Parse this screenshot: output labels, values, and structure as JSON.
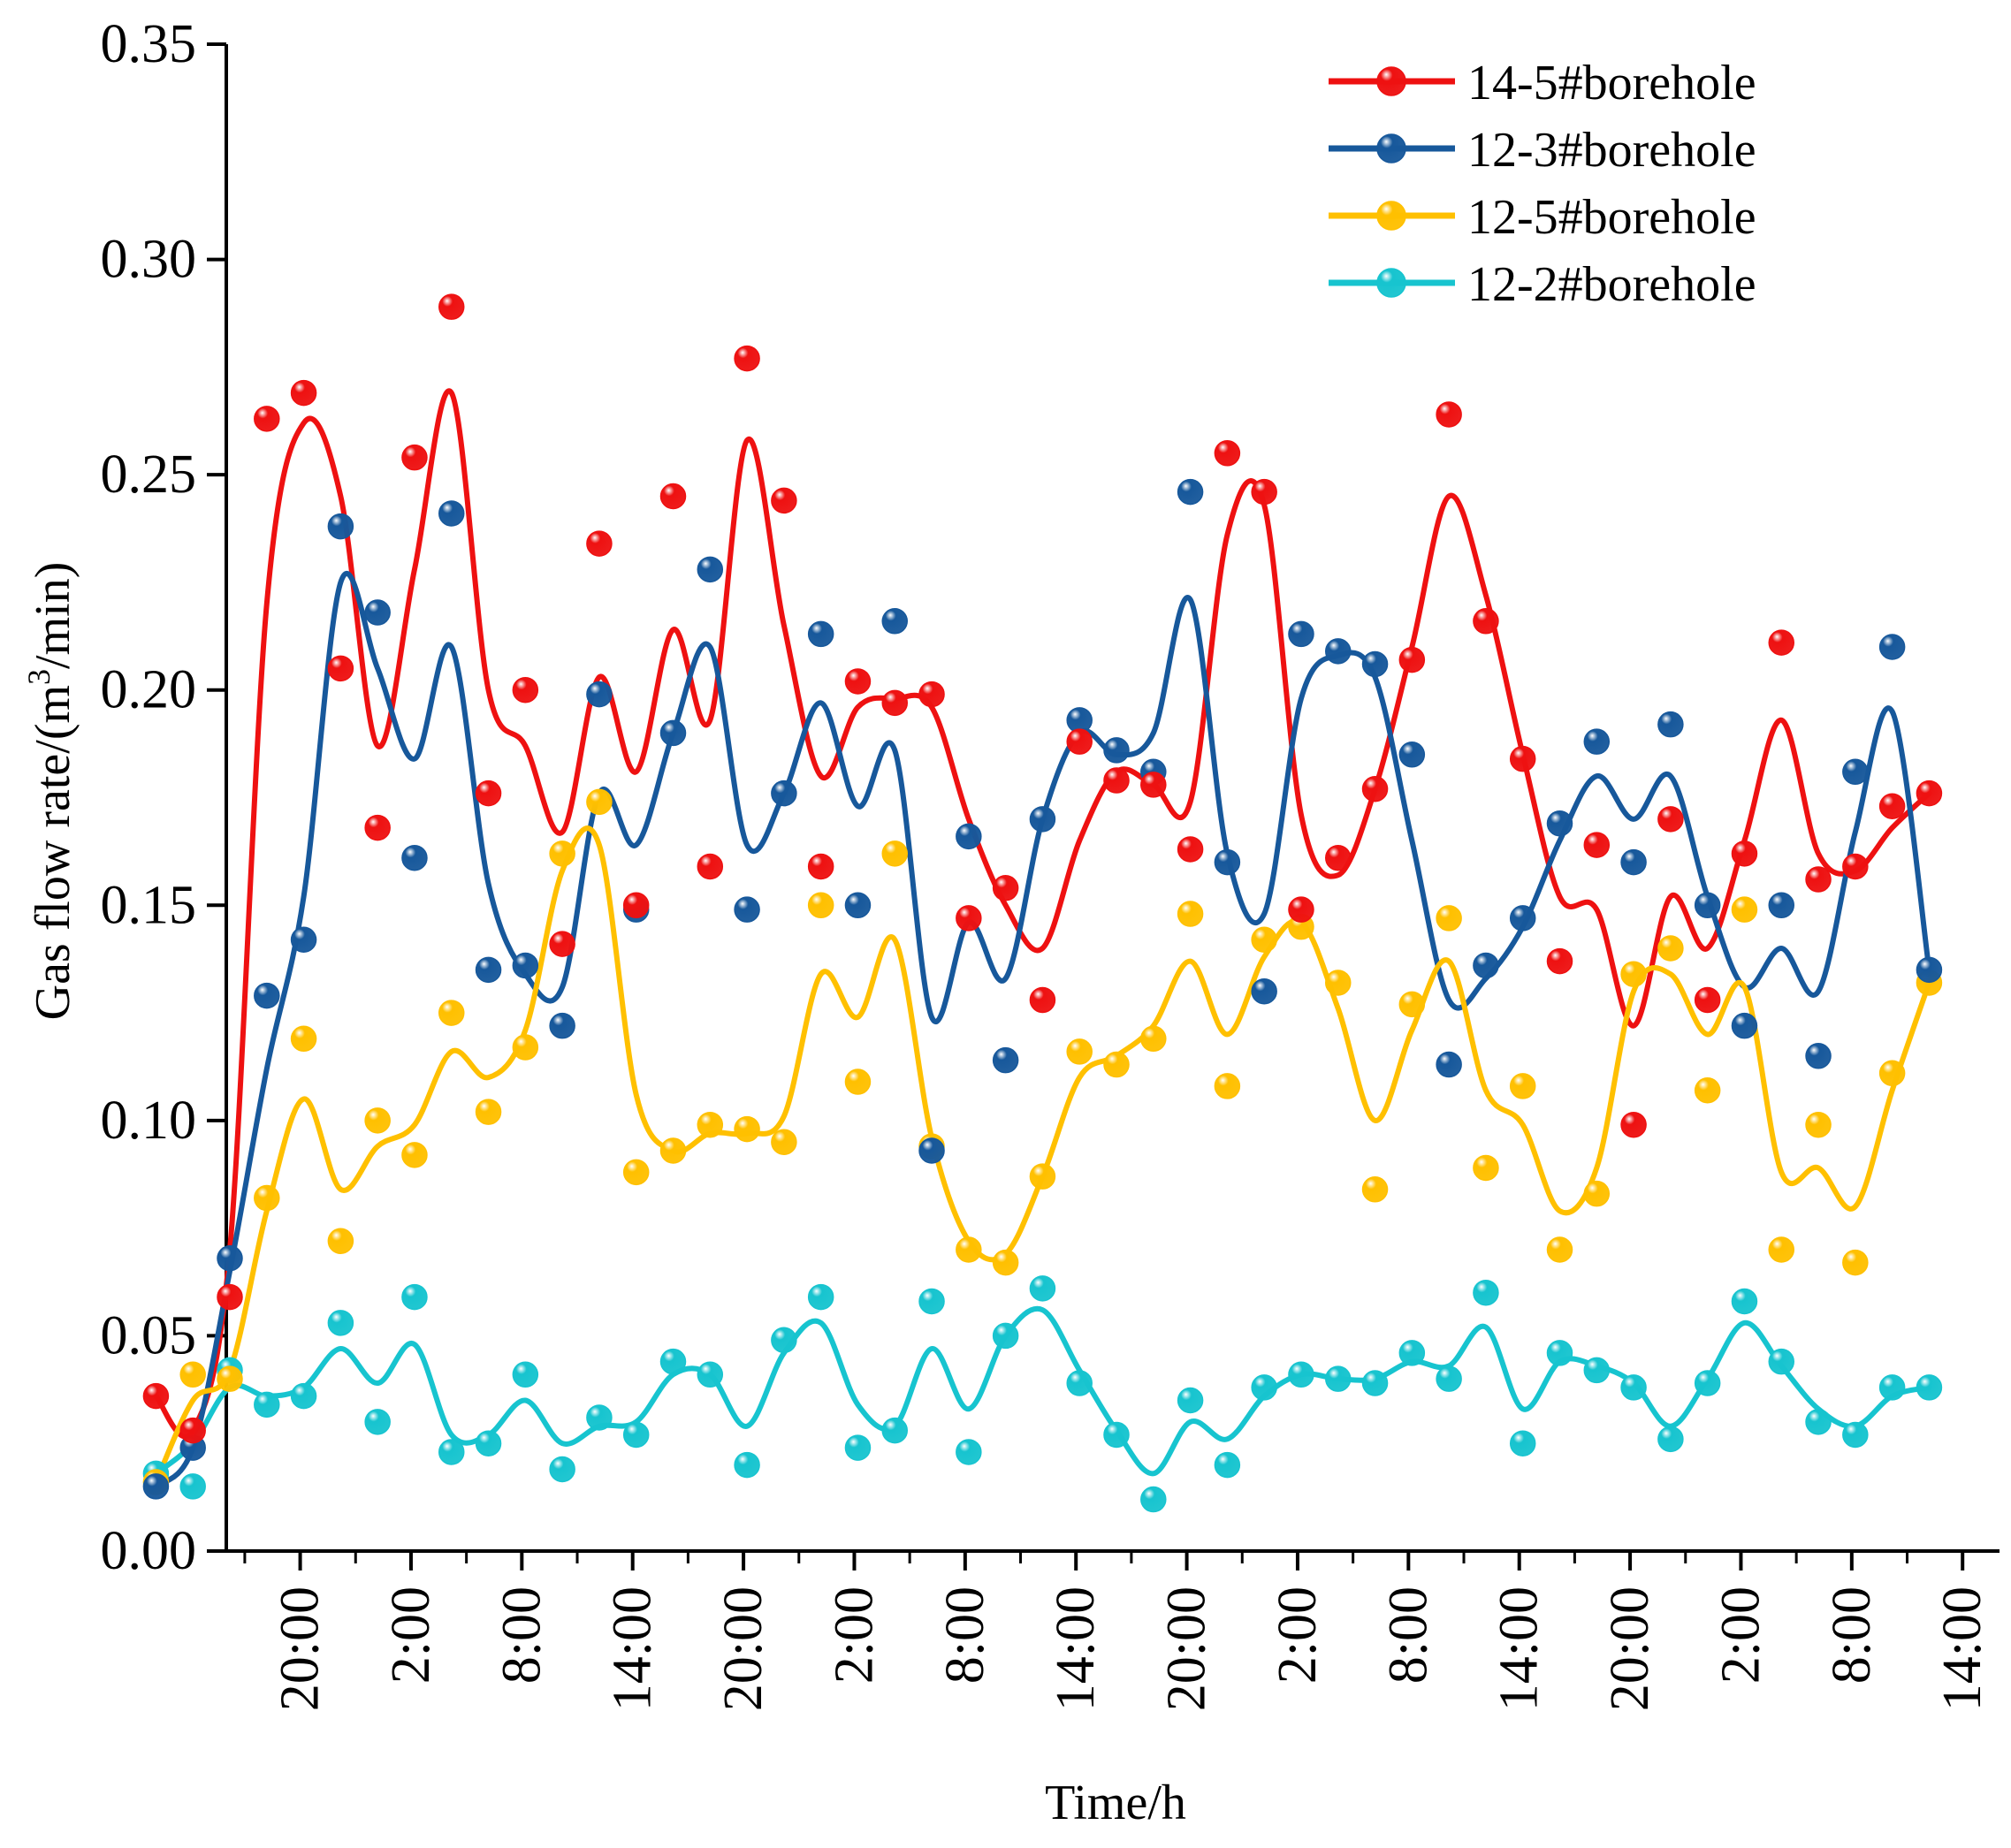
{
  "chart_data": {
    "type": "scatter",
    "title": "",
    "xlabel": "Time/h",
    "ylabel": {
      "prefix": "Gas flow rate/(m",
      "superscript": "3",
      "suffix": "/min)"
    },
    "ylim": [
      0,
      0.35
    ],
    "yticks": [
      "0.00",
      "0.05",
      "0.10",
      "0.15",
      "0.20",
      "0.25",
      "0.30",
      "0.35"
    ],
    "xlim": [
      0,
      48
    ],
    "xticks": [
      {
        "x": 2,
        "label": "20:00"
      },
      {
        "x": 5,
        "label": "2:00"
      },
      {
        "x": 8,
        "label": "8:00"
      },
      {
        "x": 11,
        "label": "14:00"
      },
      {
        "x": 14,
        "label": "20:00"
      },
      {
        "x": 17,
        "label": "2:00"
      },
      {
        "x": 20,
        "label": "8:00"
      },
      {
        "x": 23,
        "label": "14:00"
      },
      {
        "x": 26,
        "label": "20:00"
      },
      {
        "x": 29,
        "label": "2:00"
      },
      {
        "x": 32,
        "label": "8:00"
      },
      {
        "x": 35,
        "label": "14:00"
      },
      {
        "x": 38,
        "label": "20:00"
      },
      {
        "x": 41,
        "label": "2:00"
      },
      {
        "x": 44,
        "label": "8:00"
      },
      {
        "x": 47,
        "label": "14:00"
      }
    ],
    "legend_position": "top-right",
    "marker": "sphere",
    "series": [
      {
        "name": "14-5#borehole",
        "color": "#ee1111",
        "points": [
          0.036,
          0.028,
          0.059,
          0.263,
          0.269,
          0.205,
          0.168,
          0.254,
          0.289,
          0.176,
          0.2,
          0.141,
          0.234,
          0.15,
          0.245,
          0.159,
          0.277,
          0.244,
          0.159,
          0.202,
          0.197,
          0.199,
          0.147,
          0.154,
          0.128,
          0.188,
          0.179,
          0.178,
          0.163,
          0.255,
          0.246,
          0.149,
          0.161,
          0.177,
          0.207,
          0.264,
          0.216,
          0.184,
          0.137,
          0.164,
          0.099,
          0.17,
          0.128,
          0.162,
          0.211,
          0.156,
          0.159,
          0.173,
          0.176
        ],
        "curve": [
          0.036,
          0.028,
          0.07,
          0.22,
          0.262,
          0.245,
          0.187,
          0.228,
          0.269,
          0.2,
          0.187,
          0.167,
          0.203,
          0.181,
          0.214,
          0.193,
          0.258,
          0.215,
          0.18,
          0.196,
          0.198,
          0.196,
          0.17,
          0.15,
          0.14,
          0.165,
          0.181,
          0.178,
          0.174,
          0.236,
          0.243,
          0.171,
          0.157,
          0.177,
          0.21,
          0.245,
          0.222,
          0.185,
          0.152,
          0.149,
          0.122,
          0.152,
          0.14,
          0.165,
          0.193,
          0.162,
          0.158,
          0.168,
          0.176
        ]
      },
      {
        "name": "12-3#borehole",
        "color": "#17589b",
        "points": [
          0.015,
          0.024,
          0.068,
          0.129,
          0.142,
          0.238,
          0.218,
          0.161,
          0.241,
          0.135,
          0.136,
          0.122,
          0.199,
          0.149,
          0.19,
          0.228,
          0.149,
          0.176,
          0.213,
          0.15,
          0.216,
          0.093,
          0.166,
          0.114,
          0.17,
          0.193,
          0.186,
          0.181,
          0.246,
          0.16,
          0.13,
          0.213,
          0.209,
          0.206,
          0.185,
          0.113,
          0.136,
          0.147,
          0.169,
          0.188,
          0.16,
          0.192,
          0.15,
          0.122,
          0.15,
          0.115,
          0.181,
          0.21,
          0.135
        ],
        "curve": [
          0.015,
          0.024,
          0.065,
          0.112,
          0.152,
          0.225,
          0.205,
          0.184,
          0.21,
          0.155,
          0.134,
          0.131,
          0.176,
          0.164,
          0.19,
          0.21,
          0.164,
          0.176,
          0.197,
          0.173,
          0.186,
          0.124,
          0.146,
          0.133,
          0.17,
          0.19,
          0.185,
          0.19,
          0.221,
          0.162,
          0.148,
          0.198,
          0.208,
          0.203,
          0.165,
          0.128,
          0.133,
          0.145,
          0.165,
          0.18,
          0.17,
          0.18,
          0.152,
          0.131,
          0.14,
          0.13,
          0.167,
          0.195,
          0.135
        ]
      },
      {
        "name": "12-5#borehole",
        "color": "#ffc000",
        "points": [
          0.016,
          0.041,
          0.04,
          0.082,
          0.119,
          0.072,
          0.1,
          0.092,
          0.125,
          0.102,
          0.117,
          0.162,
          0.174,
          0.088,
          0.093,
          0.099,
          0.098,
          0.095,
          0.15,
          0.109,
          0.162,
          0.094,
          0.07,
          0.067,
          0.087,
          0.116,
          0.113,
          0.119,
          0.148,
          0.108,
          0.142,
          0.145,
          0.132,
          0.084,
          0.127,
          0.147,
          0.089,
          0.108,
          0.07,
          0.083,
          0.134,
          0.14,
          0.107,
          0.149,
          0.07,
          0.099,
          0.067,
          0.111,
          0.132
        ],
        "curve": [
          0.016,
          0.035,
          0.042,
          0.079,
          0.105,
          0.084,
          0.094,
          0.099,
          0.116,
          0.11,
          0.121,
          0.158,
          0.164,
          0.106,
          0.093,
          0.097,
          0.097,
          0.101,
          0.134,
          0.124,
          0.142,
          0.096,
          0.072,
          0.069,
          0.087,
          0.11,
          0.115,
          0.122,
          0.137,
          0.12,
          0.138,
          0.146,
          0.126,
          0.1,
          0.121,
          0.137,
          0.107,
          0.099,
          0.079,
          0.089,
          0.13,
          0.134,
          0.12,
          0.131,
          0.088,
          0.089,
          0.08,
          0.107,
          0.132
        ]
      },
      {
        "name": "12-2#borehole",
        "color": "#17c4cf",
        "points": [
          0.018,
          0.015,
          0.042,
          0.034,
          0.036,
          0.053,
          0.03,
          0.059,
          0.023,
          0.025,
          0.041,
          0.019,
          0.031,
          0.027,
          0.044,
          0.041,
          0.02,
          0.049,
          0.059,
          0.024,
          0.028,
          0.058,
          0.023,
          0.05,
          0.061,
          0.039,
          0.027,
          0.012,
          0.035,
          0.02,
          0.038,
          0.041,
          0.04,
          0.039,
          0.046,
          0.04,
          0.06,
          0.025,
          0.046,
          0.042,
          0.038,
          0.026,
          0.039,
          0.058,
          0.044,
          0.03,
          0.027,
          0.038,
          0.038
        ],
        "curve": [
          0.018,
          0.025,
          0.038,
          0.036,
          0.038,
          0.047,
          0.039,
          0.048,
          0.027,
          0.027,
          0.035,
          0.025,
          0.029,
          0.03,
          0.041,
          0.041,
          0.029,
          0.046,
          0.053,
          0.034,
          0.029,
          0.047,
          0.033,
          0.05,
          0.056,
          0.042,
          0.028,
          0.018,
          0.03,
          0.026,
          0.036,
          0.041,
          0.04,
          0.04,
          0.044,
          0.043,
          0.052,
          0.033,
          0.044,
          0.043,
          0.039,
          0.029,
          0.04,
          0.053,
          0.043,
          0.033,
          0.029,
          0.036,
          0.038
        ]
      }
    ]
  }
}
